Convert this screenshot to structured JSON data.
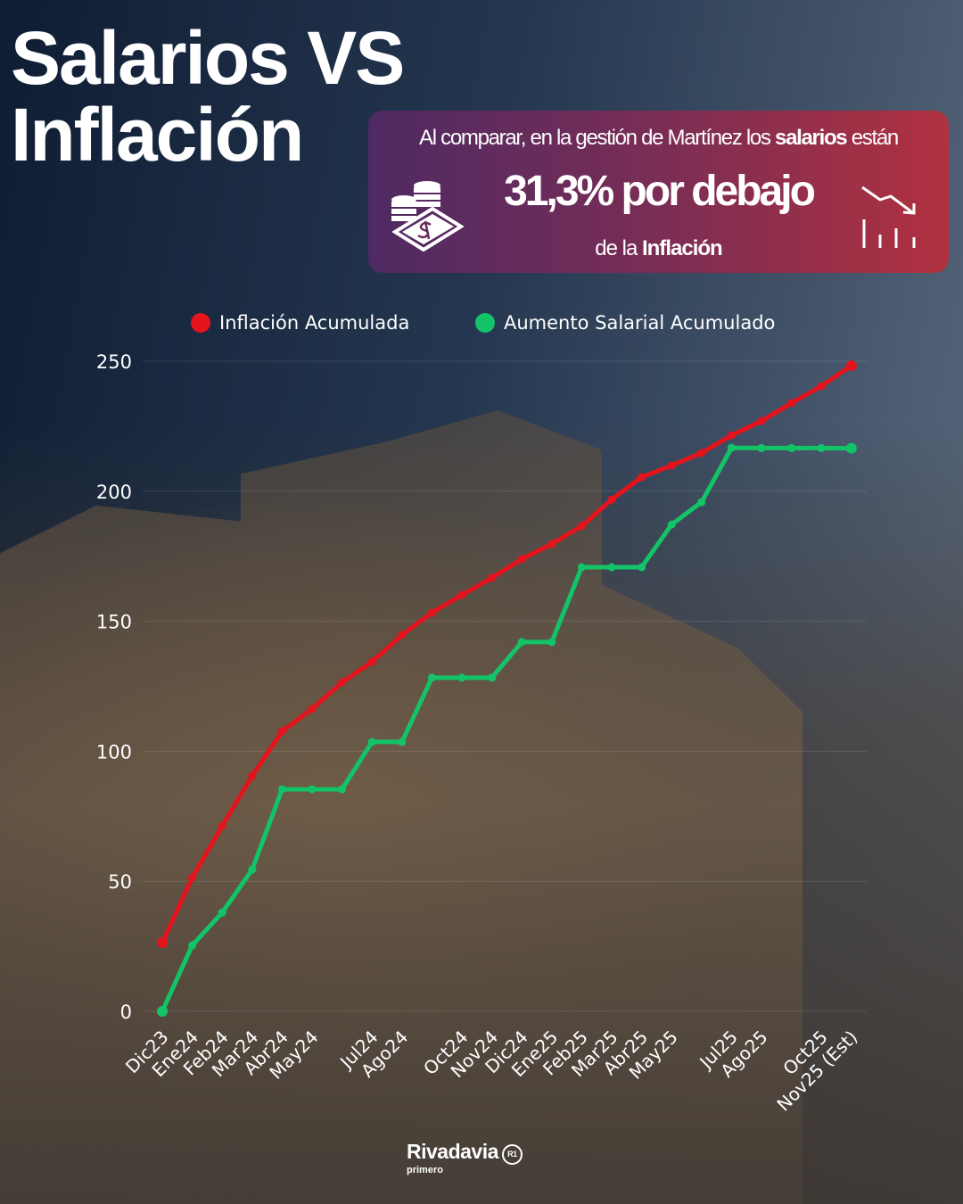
{
  "title": {
    "line1": "Salarios VS",
    "line2": "Inflación"
  },
  "callout": {
    "line1_pre": "Al comparar, en la gestión de Martínez los ",
    "line1_bold": "salarios",
    "line1_post": " están",
    "headline": "31,3% por debajo",
    "line3_pre": "de la ",
    "line3_bold": "Inflación",
    "icons": [
      "money-coins-icon",
      "trend-down-icon"
    ]
  },
  "chart_data": {
    "type": "line",
    "title": "",
    "xlabel": "",
    "ylabel": "",
    "ylim": [
      0,
      250
    ],
    "yticks": [
      0,
      50,
      100,
      150,
      200,
      250
    ],
    "grid": true,
    "legend_position": "top",
    "categories": [
      "Dic23",
      "Ene24",
      "Feb24",
      "Mar24",
      "Abr24",
      "May24",
      "",
      "Jul24",
      "Ago24",
      "",
      "Oct24",
      "Nov24",
      "Dic24",
      "Ene25",
      "Feb25",
      "Mar25",
      "Abr25",
      "May25",
      "",
      "Jul25",
      "Ago25",
      "",
      "Oct25",
      "Nov25 (Est)"
    ],
    "series": [
      {
        "name": "Inflación Acumulada",
        "color": "#e5131c",
        "values": [
          26.4,
          51.4,
          71.3,
          90.5,
          107.7,
          116.3,
          126.5,
          134.4,
          144.7,
          153.3,
          160.1,
          166.7,
          173.9,
          179.7,
          186.6,
          196.8,
          205.4,
          209.9,
          214.7,
          221.5,
          227.0,
          233.9,
          240.4,
          248.3
        ]
      },
      {
        "name": "Aumento Salarial Acumulado",
        "color": "#12c467",
        "values": [
          0,
          25.4,
          38.0,
          54.5,
          85.4,
          85.4,
          85.4,
          103.6,
          103.6,
          128.3,
          128.3,
          128.3,
          142.0,
          142.0,
          170.8,
          170.8,
          170.8,
          187.2,
          195.8,
          216.7,
          216.6,
          216.6,
          216.6,
          216.5
        ]
      }
    ]
  },
  "footer": {
    "brand": "Rivadavia",
    "sub": "primero",
    "badge": "R1"
  }
}
